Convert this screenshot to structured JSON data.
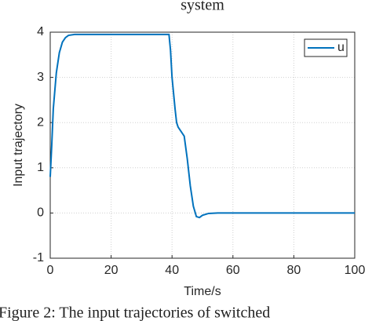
{
  "chart_data": {
    "type": "line",
    "title": "system",
    "caption": "Figure 2: The input trajectories of switched",
    "xlabel": "Time/s",
    "ylabel": "Input trajectory",
    "x": [
      0,
      0.5,
      1,
      2,
      3,
      4,
      5,
      6,
      8,
      39,
      39.5,
      40,
      41,
      41.5,
      42,
      43,
      44,
      45,
      46,
      47,
      48,
      49,
      50,
      52,
      55,
      100
    ],
    "series": [
      {
        "name": "u",
        "color": "#0072bd",
        "values": [
          0.8,
          1.5,
          2.3,
          3.1,
          3.55,
          3.78,
          3.88,
          3.93,
          3.95,
          3.95,
          3.6,
          3.0,
          2.3,
          2.0,
          1.9,
          1.8,
          1.7,
          1.2,
          0.6,
          0.15,
          -0.08,
          -0.1,
          -0.05,
          -0.01,
          0,
          0
        ]
      }
    ],
    "xlim": [
      0,
      100
    ],
    "xticks": [
      0,
      20,
      40,
      60,
      80,
      100
    ],
    "ylim": [
      -1,
      4
    ],
    "yticks": [
      -1,
      0,
      1,
      2,
      3,
      4
    ],
    "grid": true,
    "legend": "upper right"
  }
}
